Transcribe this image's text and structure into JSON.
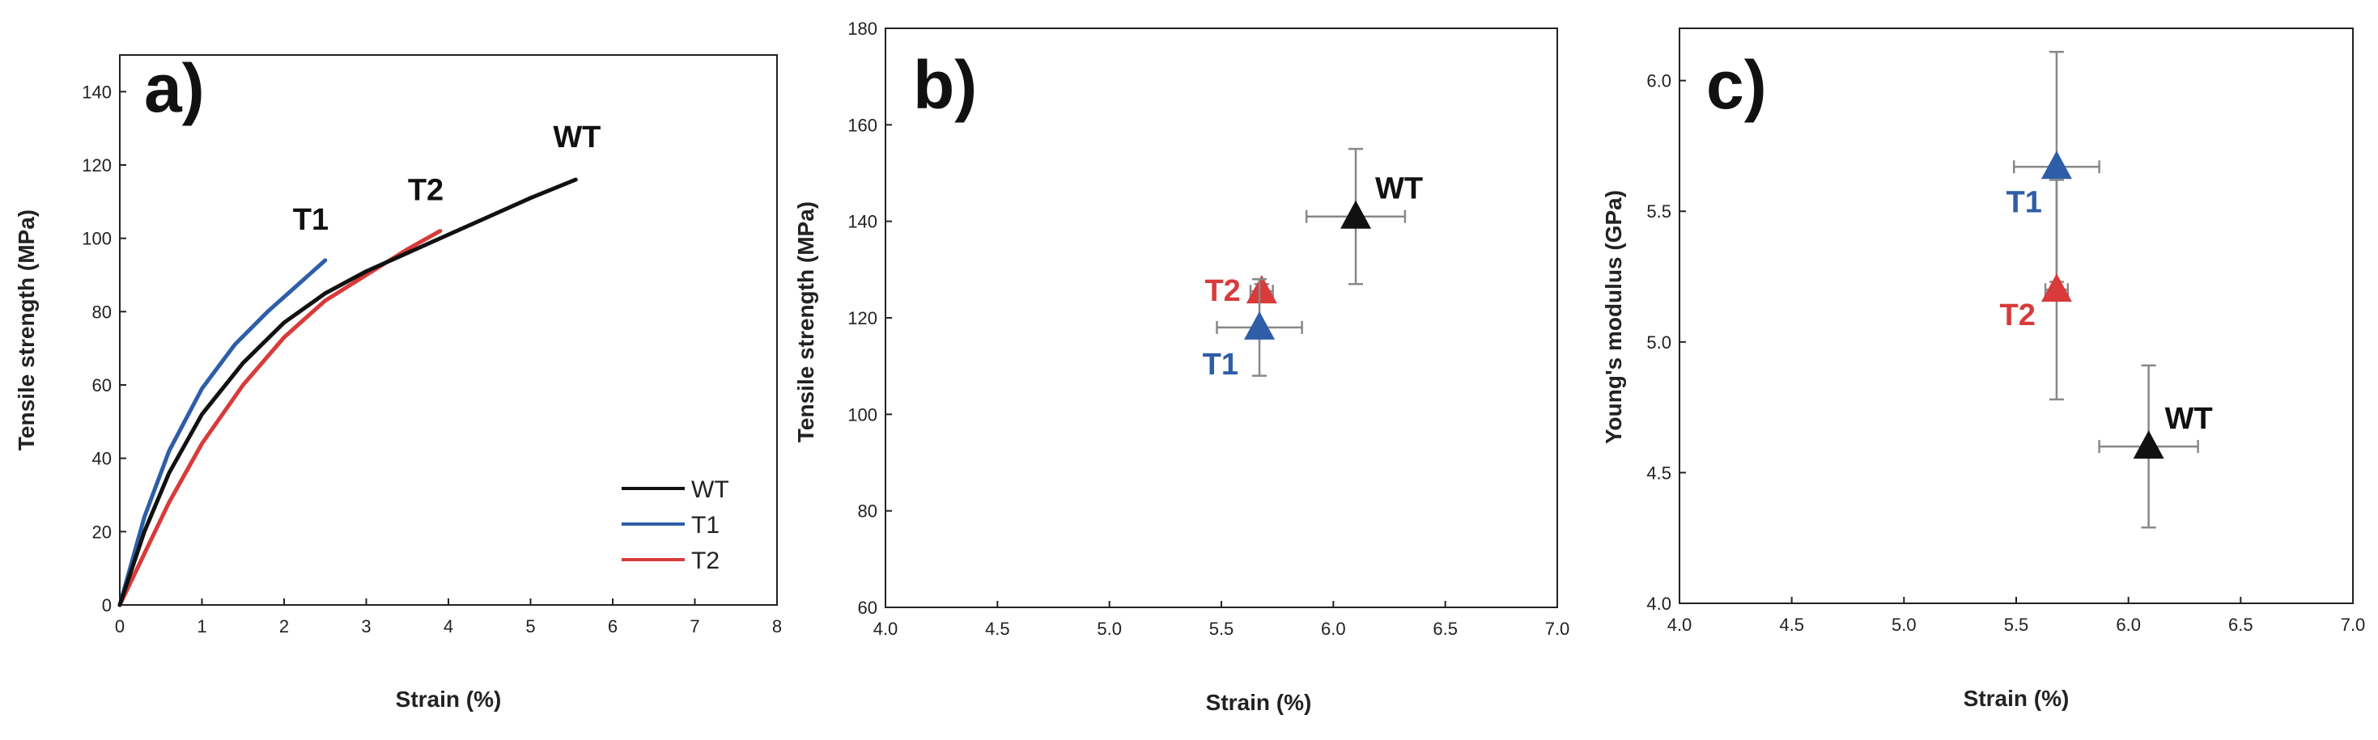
{
  "colors": {
    "WT": "#111111",
    "T1": "#2e5ea8",
    "T2": "#d93a3a",
    "errorbar": "#888888"
  },
  "chart_data": [
    {
      "panel": "a)",
      "type": "line",
      "xlabel": "Strain (%)",
      "ylabel": "Tensile strength (MPa)",
      "xlim": [
        0,
        8
      ],
      "ylim": [
        0,
        150
      ],
      "xticks": [
        "0",
        "1",
        "2",
        "3",
        "4",
        "5",
        "6",
        "7",
        "8"
      ],
      "yticks": [
        "0",
        "20",
        "40",
        "60",
        "80",
        "100",
        "120",
        "140"
      ],
      "legend": [
        "WT",
        "T1",
        "T2"
      ],
      "series": [
        {
          "name": "WT",
          "end_label": "WT",
          "x": [
            0,
            0.3,
            0.6,
            1.0,
            1.5,
            2.0,
            2.5,
            3.0,
            3.5,
            4.0,
            4.5,
            5.0,
            5.55
          ],
          "y": [
            0,
            20,
            36,
            52,
            66,
            77,
            85,
            91,
            96,
            101,
            106,
            111,
            116
          ]
        },
        {
          "name": "T1",
          "end_label": "T1",
          "x": [
            0,
            0.3,
            0.6,
            1.0,
            1.4,
            1.8,
            2.2,
            2.5
          ],
          "y": [
            0,
            24,
            42,
            59,
            71,
            80,
            88,
            94
          ]
        },
        {
          "name": "T2",
          "end_label": "T2",
          "x": [
            0,
            0.3,
            0.6,
            1.0,
            1.5,
            2.0,
            2.5,
            3.0,
            3.5,
            3.9
          ],
          "y": [
            0,
            14,
            28,
            44,
            60,
            73,
            83,
            90,
            97,
            102
          ]
        }
      ]
    },
    {
      "panel": "b)",
      "type": "scatter",
      "xlabel": "Strain (%)",
      "ylabel": "Tensile strength (MPa)",
      "xlim": [
        4.0,
        7.0
      ],
      "ylim": [
        60,
        180
      ],
      "xticks": [
        "4.0",
        "4.5",
        "5.0",
        "5.5",
        "6.0",
        "6.5",
        "7.0"
      ],
      "yticks": [
        "60",
        "80",
        "100",
        "120",
        "140",
        "160",
        "180"
      ],
      "points": [
        {
          "name": "WT",
          "x": 6.1,
          "y": 141,
          "xerr": 0.22,
          "yerr": 14
        },
        {
          "name": "T2",
          "x": 5.68,
          "y": 125.5,
          "xerr": 0.05,
          "yerr": 1.5
        },
        {
          "name": "T1",
          "x": 5.67,
          "y": 118,
          "xerr": 0.19,
          "yerr": 10
        }
      ]
    },
    {
      "panel": "c)",
      "type": "scatter",
      "xlabel": "Strain (%)",
      "ylabel": "Young's modulus (GPa)",
      "xlim": [
        4.0,
        7.0
      ],
      "ylim": [
        4.0,
        6.2
      ],
      "xticks": [
        "4.0",
        "4.5",
        "5.0",
        "5.5",
        "6.0",
        "6.5",
        "7.0"
      ],
      "yticks": [
        "4.0",
        "4.5",
        "5.0",
        "5.5",
        "6.0"
      ],
      "points": [
        {
          "name": "T1",
          "x": 5.68,
          "y": 5.67,
          "xerr": 0.19,
          "yerr": 0.44
        },
        {
          "name": "T2",
          "x": 5.68,
          "y": 5.2,
          "xerr": 0.05,
          "yerr": 0.42
        },
        {
          "name": "WT",
          "x": 6.09,
          "y": 4.6,
          "xerr": 0.22,
          "yerr": 0.31
        }
      ]
    }
  ]
}
